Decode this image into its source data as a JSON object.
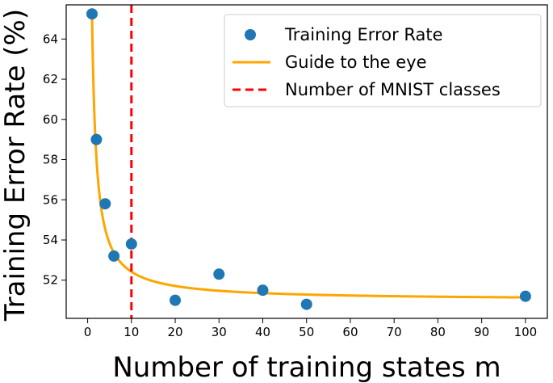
{
  "chart_data": {
    "type": "scatter",
    "xlabel": "Number of training states m",
    "ylabel": "Training Error Rate (%)",
    "xlim": [
      -4.9,
      105
    ],
    "ylim": [
      50.1,
      65.7
    ],
    "x_ticks": [
      0,
      10,
      20,
      30,
      40,
      50,
      60,
      70,
      80,
      90,
      100
    ],
    "y_ticks": [
      52,
      54,
      56,
      58,
      60,
      62,
      64
    ],
    "series": [
      {
        "name": "Training Error Rate",
        "kind": "scatter",
        "color": "#1f77b4",
        "x": [
          1,
          2,
          4,
          6,
          10,
          20,
          30,
          40,
          50,
          100
        ],
        "y": [
          65.25,
          59.0,
          55.8,
          53.2,
          53.8,
          51.0,
          52.3,
          51.5,
          50.8,
          51.2
        ]
      },
      {
        "name": "Guide to the eye",
        "kind": "line",
        "color": "#ffa500",
        "formula": "51.0 + 14.2 / m",
        "x_range": [
          1,
          100
        ]
      },
      {
        "name": "Number of MNIST classes",
        "kind": "vline",
        "color": "#ff0000",
        "x": 10
      }
    ],
    "legend_position": "top-right",
    "grid": false
  }
}
